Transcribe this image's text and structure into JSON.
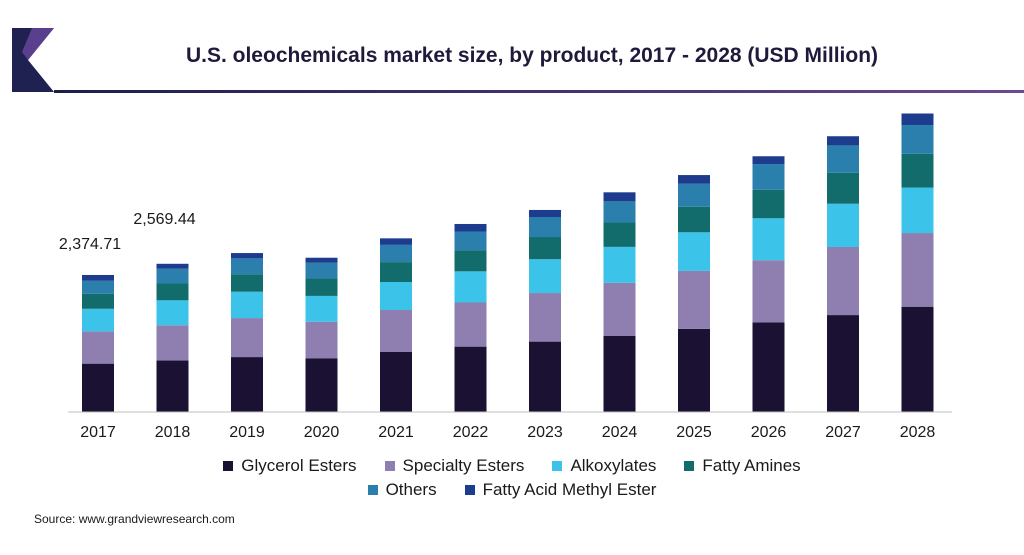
{
  "header": {
    "title": "U.S. oleochemicals market size, by product, 2017 - 2028 (USD Million)"
  },
  "source": "Source: www.grandviewresearch.com",
  "colors": {
    "glycerol": "#1b1233",
    "specialty": "#8e7fb0",
    "alkoxylates": "#3bc3ea",
    "fatty_amines": "#136c6c",
    "others": "#2b7fad",
    "fame": "#1e3c8e",
    "title_rule": "#3c2f6a"
  },
  "chart_data": {
    "type": "bar",
    "stacked": true,
    "title": "U.S. oleochemicals market size, by product, 2017 - 2028 (USD Million)",
    "xlabel": "",
    "ylabel": "",
    "grid": false,
    "categories": [
      "2017",
      "2018",
      "2019",
      "2020",
      "2021",
      "2022",
      "2023",
      "2024",
      "2025",
      "2026",
      "2027",
      "2028"
    ],
    "series": [
      {
        "name": "Glycerol Esters",
        "values": [
          838,
          892,
          952,
          932,
          1040,
          1133,
          1220,
          1322,
          1440,
          1551,
          1680,
          1825
        ]
      },
      {
        "name": "Specialty Esters",
        "values": [
          560,
          612,
          676,
          632,
          728,
          765,
          842,
          917,
          1005,
          1080,
          1180,
          1277
        ]
      },
      {
        "name": "Alkoxylates",
        "values": [
          391,
          432,
          457,
          448,
          485,
          540,
          586,
          623,
          670,
          727,
          750,
          788
        ]
      },
      {
        "name": "Fatty Amines",
        "values": [
          261,
          291,
          303,
          303,
          345,
          363,
          385,
          422,
          443,
          493,
          535,
          585
        ]
      },
      {
        "name": "Others",
        "values": [
          224,
          256,
          275,
          272,
          299,
          327,
          347,
          367,
          398,
          447,
          476,
          499
        ]
      },
      {
        "name": "Fatty Acid Methyl Ester",
        "values": [
          101,
          86,
          92,
          87,
          113,
          131,
          122,
          157,
          151,
          135,
          159,
          200
        ]
      }
    ],
    "totals_labels": [
      {
        "category": "2017",
        "text": "2,374.71",
        "total": 2374.71
      },
      {
        "category": "2018",
        "text": "2,569.44",
        "total": 2569.44
      }
    ],
    "ylim": [
      0,
      5200
    ],
    "legend_position": "bottom"
  }
}
